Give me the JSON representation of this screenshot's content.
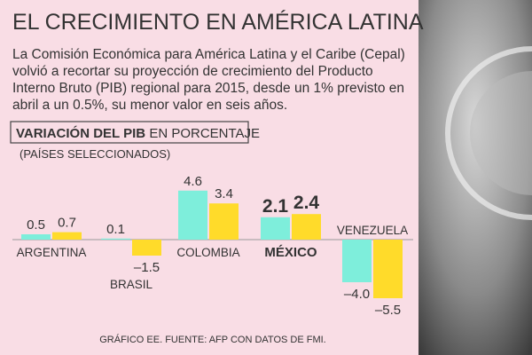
{
  "title": "EL CRECIMIENTO EN AMÉRICA LATINA",
  "intro": [
    "La Comisión Económica para América Latina y el Caribe (Cepal)",
    "volvió a recortar su proyección de crecimiento del Producto",
    "Interno Bruto (PIB) regional para 2015, desde un 1% previsto en",
    "abril a un 0.5%, su menor valor en seis años."
  ],
  "chart_data": {
    "type": "bar",
    "title": "VARIACIÓN DEL PIB",
    "title_suffix": "EN PORCENTAJE",
    "subtitle": "(PAÍSES SELECCIONADOS)",
    "categories": [
      "ARGENTINA",
      "BRASIL",
      "COLOMBIA",
      "MÉXICO",
      "VENEZUELA"
    ],
    "series": [
      {
        "color": "#7eeedb",
        "values": [
          0.5,
          0.1,
          4.6,
          2.1,
          -4.0
        ],
        "value_labels": [
          "0.5",
          "0.1",
          "4.6",
          "2.1",
          "–4.0"
        ]
      },
      {
        "color": "#ffdb2a",
        "values": [
          0.7,
          -1.5,
          3.4,
          2.4,
          -5.5
        ],
        "value_labels": [
          "0.7",
          "–1.5",
          "3.4",
          "2.4",
          "–5.5"
        ]
      }
    ]
  },
  "footer": "GRÁFICO EE. FUENTE: AFP CON DATOS DE FMI."
}
